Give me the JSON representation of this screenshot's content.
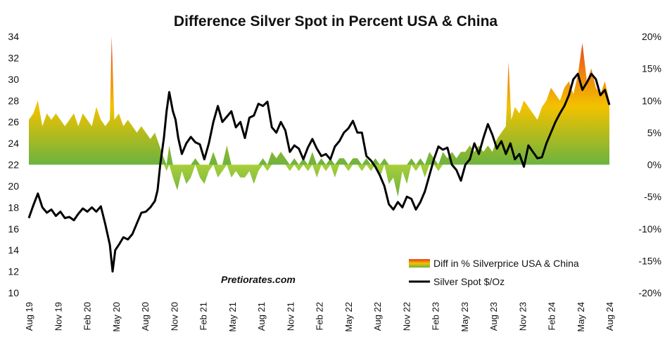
{
  "chart_data": {
    "type": "line",
    "title": "Difference Silver Spot in Percent USA & China",
    "watermark": "Pretiorates.com",
    "y_left": {
      "min": 10,
      "max": 34,
      "ticks": [
        "10",
        "12",
        "14",
        "16",
        "18",
        "20",
        "22",
        "24",
        "26",
        "28",
        "30",
        "32",
        "34"
      ]
    },
    "y_right": {
      "min": -0.2,
      "max": 0.2,
      "ticks": [
        "-20%",
        "-15%",
        "-10%",
        "-5%",
        "0%",
        "5%",
        "10%",
        "15%",
        "20%"
      ]
    },
    "x_labels": [
      "Aug 19",
      "Nov 19",
      "Feb 20",
      "May 20",
      "Aug 20",
      "Nov 20",
      "Feb 21",
      "May 21",
      "Aug 21",
      "Nov 21",
      "Feb 22",
      "May 22",
      "Aug 22",
      "Nov 22",
      "Feb 23",
      "May 23",
      "Aug 23",
      "Nov 23",
      "Feb 24",
      "May 24",
      "Aug 24"
    ],
    "legend": [
      {
        "label": "Diff in % Silverprice USA & China",
        "type": "area"
      },
      {
        "label": "Silver Spot  $/Oz",
        "type": "line"
      }
    ],
    "colors": {
      "line": "#000000",
      "area_low": "#6cb33f",
      "area_mid": "#f2c200",
      "area_high": "#e83b1a"
    },
    "series": [
      {
        "name": "Silver Spot  $/Oz",
        "axis": "left",
        "points": [
          [
            0,
            17.0
          ],
          [
            0.5,
            18.2
          ],
          [
            1,
            19.3
          ],
          [
            1.5,
            18.0
          ],
          [
            2,
            17.5
          ],
          [
            2.5,
            17.8
          ],
          [
            3,
            17.2
          ],
          [
            3.5,
            17.6
          ],
          [
            4,
            17.0
          ],
          [
            4.5,
            17.1
          ],
          [
            5,
            16.8
          ],
          [
            5.5,
            17.4
          ],
          [
            6,
            17.9
          ],
          [
            6.5,
            17.6
          ],
          [
            7,
            18.0
          ],
          [
            7.5,
            17.6
          ],
          [
            8,
            18.1
          ],
          [
            8.5,
            16.4
          ],
          [
            9,
            14.5
          ],
          [
            9.3,
            12.0
          ],
          [
            9.6,
            14.0
          ],
          [
            10,
            14.5
          ],
          [
            10.5,
            15.2
          ],
          [
            11,
            15.0
          ],
          [
            11.5,
            15.5
          ],
          [
            12,
            16.5
          ],
          [
            12.5,
            17.5
          ],
          [
            13,
            17.6
          ],
          [
            13.5,
            18.0
          ],
          [
            14,
            18.6
          ],
          [
            14.3,
            19.6
          ],
          [
            14.6,
            22.0
          ],
          [
            15,
            24.5
          ],
          [
            15.3,
            27.0
          ],
          [
            15.6,
            28.8
          ],
          [
            16,
            27.0
          ],
          [
            16.3,
            26.2
          ],
          [
            16.6,
            24.5
          ],
          [
            17,
            23.0
          ],
          [
            17.5,
            24.0
          ],
          [
            18,
            24.6
          ],
          [
            18.5,
            24.1
          ],
          [
            19,
            23.9
          ],
          [
            19.5,
            22.5
          ],
          [
            20,
            24.0
          ],
          [
            20.5,
            26.0
          ],
          [
            21,
            27.5
          ],
          [
            21.5,
            26.0
          ],
          [
            22,
            26.5
          ],
          [
            22.5,
            27.0
          ],
          [
            23,
            25.5
          ],
          [
            23.5,
            26.0
          ],
          [
            24,
            24.5
          ],
          [
            24.5,
            26.4
          ],
          [
            25,
            26.6
          ],
          [
            25.5,
            27.7
          ],
          [
            26,
            27.5
          ],
          [
            26.5,
            27.9
          ],
          [
            27,
            25.5
          ],
          [
            27.5,
            25.0
          ],
          [
            28,
            26.0
          ],
          [
            28.5,
            25.2
          ],
          [
            29,
            23.2
          ],
          [
            29.5,
            23.8
          ],
          [
            30,
            23.5
          ],
          [
            30.5,
            22.5
          ],
          [
            31,
            23.6
          ],
          [
            31.5,
            24.4
          ],
          [
            32,
            23.5
          ],
          [
            32.5,
            22.8
          ],
          [
            33,
            23.0
          ],
          [
            33.5,
            22.5
          ],
          [
            34,
            23.7
          ],
          [
            34.5,
            24.2
          ],
          [
            35,
            25.0
          ],
          [
            35.5,
            25.4
          ],
          [
            36,
            26.1
          ],
          [
            36.5,
            25.0
          ],
          [
            37,
            25.0
          ],
          [
            37.5,
            22.8
          ],
          [
            38,
            22.4
          ],
          [
            38.5,
            21.8
          ],
          [
            39,
            21.0
          ],
          [
            39.5,
            20.0
          ],
          [
            40,
            18.3
          ],
          [
            40.5,
            17.8
          ],
          [
            41,
            18.5
          ],
          [
            41.5,
            18.0
          ],
          [
            42,
            19.0
          ],
          [
            42.5,
            18.8
          ],
          [
            43,
            17.8
          ],
          [
            43.5,
            18.5
          ],
          [
            44,
            19.5
          ],
          [
            44.5,
            21.0
          ],
          [
            45,
            22.5
          ],
          [
            45.5,
            23.7
          ],
          [
            46,
            23.4
          ],
          [
            46.5,
            23.6
          ],
          [
            47,
            22.0
          ],
          [
            47.5,
            21.5
          ],
          [
            48,
            20.5
          ],
          [
            48.5,
            22.0
          ],
          [
            49,
            22.5
          ],
          [
            49.5,
            24.0
          ],
          [
            50,
            23.0
          ],
          [
            50.5,
            24.5
          ],
          [
            51,
            25.8
          ],
          [
            51.5,
            24.8
          ],
          [
            52,
            23.5
          ],
          [
            52.5,
            24.2
          ],
          [
            53,
            23.0
          ],
          [
            53.5,
            24.0
          ],
          [
            54,
            22.5
          ],
          [
            54.5,
            23.0
          ],
          [
            55,
            21.8
          ],
          [
            55.5,
            23.8
          ],
          [
            56,
            23.2
          ],
          [
            56.5,
            22.6
          ],
          [
            57,
            22.7
          ],
          [
            57.5,
            24.0
          ],
          [
            58,
            25.0
          ],
          [
            58.5,
            26.0
          ],
          [
            59,
            26.8
          ],
          [
            59.5,
            27.5
          ],
          [
            60,
            28.5
          ],
          [
            60.5,
            30.0
          ],
          [
            61,
            30.5
          ],
          [
            61.5,
            29.0
          ],
          [
            62,
            29.7
          ],
          [
            62.5,
            30.5
          ],
          [
            63,
            30.0
          ],
          [
            63.5,
            28.5
          ],
          [
            64,
            29.0
          ],
          [
            64.5,
            27.6
          ]
        ]
      },
      {
        "name": "Diff in % Silverprice USA & China",
        "axis": "right",
        "points": [
          [
            0,
            0.07
          ],
          [
            0.5,
            0.08
          ],
          [
            1,
            0.1
          ],
          [
            1.5,
            0.06
          ],
          [
            2,
            0.08
          ],
          [
            2.5,
            0.07
          ],
          [
            3,
            0.08
          ],
          [
            3.5,
            0.07
          ],
          [
            4,
            0.06
          ],
          [
            4.5,
            0.07
          ],
          [
            5,
            0.08
          ],
          [
            5.5,
            0.06
          ],
          [
            6,
            0.08
          ],
          [
            6.5,
            0.07
          ],
          [
            7,
            0.06
          ],
          [
            7.5,
            0.09
          ],
          [
            8,
            0.07
          ],
          [
            8.5,
            0.06
          ],
          [
            9,
            0.07
          ],
          [
            9.2,
            0.2
          ],
          [
            9.5,
            0.07
          ],
          [
            10,
            0.08
          ],
          [
            10.5,
            0.06
          ],
          [
            11,
            0.07
          ],
          [
            11.5,
            0.06
          ],
          [
            12,
            0.05
          ],
          [
            12.5,
            0.06
          ],
          [
            13,
            0.05
          ],
          [
            13.5,
            0.04
          ],
          [
            14,
            0.05
          ],
          [
            14.5,
            0.03
          ],
          [
            15,
            0.01
          ],
          [
            15.3,
            -0.01
          ],
          [
            15.6,
            0.03
          ],
          [
            16,
            -0.02
          ],
          [
            16.5,
            -0.04
          ],
          [
            17,
            -0.01
          ],
          [
            17.5,
            -0.03
          ],
          [
            18,
            -0.02
          ],
          [
            18.5,
            0.01
          ],
          [
            19,
            -0.02
          ],
          [
            19.5,
            -0.03
          ],
          [
            20,
            -0.01
          ],
          [
            20.5,
            0.02
          ],
          [
            21,
            -0.02
          ],
          [
            21.5,
            -0.01
          ],
          [
            22,
            0.03
          ],
          [
            22.5,
            -0.02
          ],
          [
            23,
            -0.01
          ],
          [
            23.5,
            -0.02
          ],
          [
            24,
            -0.02
          ],
          [
            24.5,
            -0.01
          ],
          [
            25,
            -0.03
          ],
          [
            25.5,
            -0.01
          ],
          [
            26,
            0.01
          ],
          [
            26.5,
            -0.01
          ],
          [
            27,
            0.02
          ],
          [
            27.5,
            0.01
          ],
          [
            28,
            0.02
          ],
          [
            28.5,
            0.01
          ],
          [
            29,
            -0.01
          ],
          [
            29.5,
            0.01
          ],
          [
            30,
            -0.01
          ],
          [
            30.5,
            0.01
          ],
          [
            31,
            -0.01
          ],
          [
            31.5,
            0.02
          ],
          [
            32,
            -0.02
          ],
          [
            32.5,
            0.01
          ],
          [
            33,
            -0.01
          ],
          [
            33.5,
            0.01
          ],
          [
            34,
            -0.02
          ],
          [
            34.5,
            0.01
          ],
          [
            35,
            0.01
          ],
          [
            35.5,
            -0.01
          ],
          [
            36,
            0.01
          ],
          [
            36.5,
            0.01
          ],
          [
            37,
            -0.01
          ],
          [
            37.5,
            0.01
          ],
          [
            38,
            -0.01
          ],
          [
            38.5,
            0.01
          ],
          [
            39,
            -0.02
          ],
          [
            39.5,
            0.01
          ],
          [
            40,
            -0.03
          ],
          [
            40.5,
            -0.02
          ],
          [
            41,
            -0.05
          ],
          [
            41.5,
            -0.01
          ],
          [
            42,
            -0.03
          ],
          [
            42.5,
            0.01
          ],
          [
            43,
            -0.01
          ],
          [
            43.5,
            0.01
          ],
          [
            44,
            -0.02
          ],
          [
            44.5,
            0.02
          ],
          [
            45,
            0.01
          ],
          [
            45.5,
            -0.01
          ],
          [
            46,
            0.02
          ],
          [
            46.5,
            0.01
          ],
          [
            47,
            0.02
          ],
          [
            47.5,
            0.01
          ],
          [
            48,
            0.02
          ],
          [
            48.5,
            0.02
          ],
          [
            49,
            0.03
          ],
          [
            49.5,
            0.02
          ],
          [
            50,
            0.03
          ],
          [
            50.5,
            0.02
          ],
          [
            51,
            0.03
          ],
          [
            51.5,
            0.02
          ],
          [
            52,
            0.04
          ],
          [
            52.5,
            0.05
          ],
          [
            53,
            0.06
          ],
          [
            53.3,
            0.16
          ],
          [
            53.6,
            0.07
          ],
          [
            54,
            0.09
          ],
          [
            54.5,
            0.08
          ],
          [
            55,
            0.1
          ],
          [
            55.5,
            0.09
          ],
          [
            56,
            0.08
          ],
          [
            56.5,
            0.07
          ],
          [
            57,
            0.09
          ],
          [
            57.5,
            0.1
          ],
          [
            58,
            0.12
          ],
          [
            58.5,
            0.11
          ],
          [
            59,
            0.1
          ],
          [
            59.5,
            0.12
          ],
          [
            60,
            0.13
          ],
          [
            60.5,
            0.11
          ],
          [
            61,
            0.14
          ],
          [
            61.5,
            0.19
          ],
          [
            62,
            0.13
          ],
          [
            62.5,
            0.15
          ],
          [
            63,
            0.12
          ],
          [
            63.5,
            0.11
          ],
          [
            64,
            0.13
          ],
          [
            64.5,
            0.1
          ]
        ]
      }
    ]
  }
}
